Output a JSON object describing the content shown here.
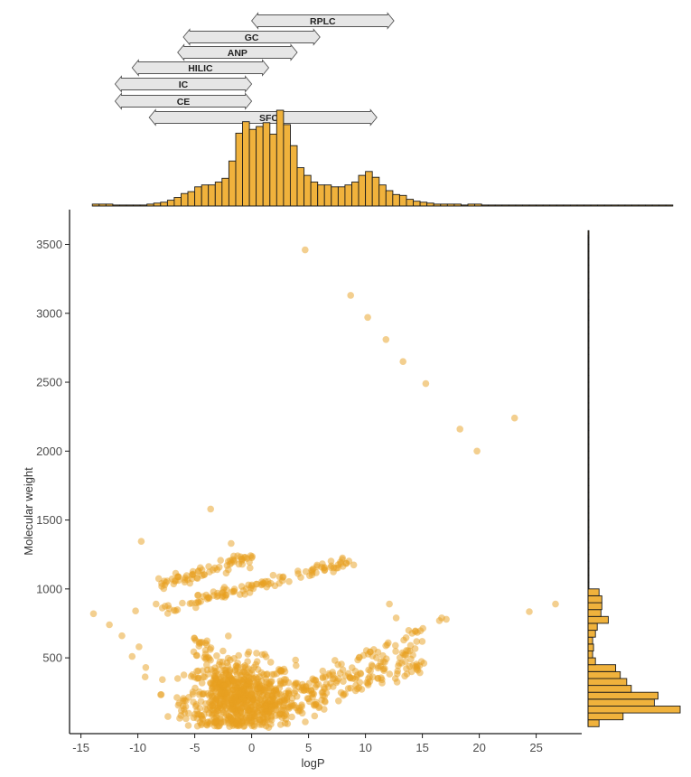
{
  "chart_data": {
    "type": "scatter",
    "xlabel": "logP",
    "ylabel": "Molecular weight",
    "xlim": [
      -16,
      29
    ],
    "ylim": [
      -50,
      3700
    ],
    "x_ticks": [
      -15,
      -10,
      -5,
      0,
      5,
      10,
      15,
      20,
      25
    ],
    "y_ticks": [
      500,
      1000,
      1500,
      2000,
      2500,
      3000,
      3500
    ],
    "grid": false,
    "colors": {
      "point": "#e8a020",
      "bar_fill": "#f0b23c",
      "bar_stroke": "#1a1a1a",
      "arrow_fill": "#e6e6e6",
      "arrow_stroke": "#555555",
      "axis": "#1a1a1a",
      "tick_label": "#4d4d4d"
    },
    "technique_ranges": [
      {
        "label": "RPLC",
        "start": 0,
        "end": 12.5
      },
      {
        "label": "GC",
        "start": -6,
        "end": 6
      },
      {
        "label": "ANP",
        "start": -6.5,
        "end": 4
      },
      {
        "label": "HILIC",
        "start": -10.5,
        "end": 1.5
      },
      {
        "label": "IC",
        "start": -12,
        "end": 0
      },
      {
        "label": "CE",
        "start": -12,
        "end": 0
      },
      {
        "label": "SFC",
        "start": -9,
        "end": 11
      }
    ],
    "logp_histogram": {
      "bin_start": -14,
      "bin_width": 0.6,
      "heights": [
        0.02,
        0.02,
        0.02,
        0.01,
        0.01,
        0.01,
        0.01,
        0.01,
        0.02,
        0.03,
        0.04,
        0.06,
        0.09,
        0.13,
        0.15,
        0.2,
        0.22,
        0.22,
        0.25,
        0.29,
        0.47,
        0.76,
        0.88,
        0.8,
        0.83,
        0.87,
        0.75,
        1.0,
        0.85,
        0.63,
        0.4,
        0.32,
        0.25,
        0.22,
        0.22,
        0.2,
        0.2,
        0.22,
        0.25,
        0.32,
        0.36,
        0.3,
        0.22,
        0.16,
        0.12,
        0.11,
        0.07,
        0.05,
        0.04,
        0.03,
        0.02,
        0.02,
        0.02,
        0.02,
        0.01,
        0.02,
        0.02,
        0.01,
        0.01,
        0.01,
        0.01,
        0.01,
        0.01,
        0.01,
        0.01,
        0.01,
        0.01,
        0.01,
        0.01,
        0.01,
        0.01,
        0.01,
        0.01,
        0.01,
        0.01,
        0.01,
        0.01,
        0.01,
        0.01,
        0.01,
        0.01,
        0.01,
        0.01,
        0.01,
        0.01
      ]
    },
    "mw_histogram": {
      "bin_start": 0,
      "bin_width": 50,
      "heights": [
        0.12,
        0.38,
        1.0,
        0.72,
        0.76,
        0.47,
        0.42,
        0.35,
        0.3,
        0.08,
        0.05,
        0.06,
        0.05,
        0.08,
        0.1,
        0.22,
        0.14,
        0.15,
        0.15,
        0.12,
        0.01,
        0.01,
        0.01,
        0.01,
        0.01,
        0.01,
        0.01,
        0.01,
        0.01,
        0.01,
        0.01,
        0.01,
        0.01,
        0.01,
        0.01,
        0.01,
        0.01,
        0.01,
        0.01,
        0.01,
        0.01,
        0.01,
        0.01,
        0.01,
        0.01,
        0.01,
        0.01,
        0.01,
        0.01,
        0.01,
        0.01,
        0.01,
        0.01,
        0.01,
        0.01,
        0.01,
        0.01,
        0.01,
        0.01,
        0.01,
        0.01,
        0.01,
        0.01,
        0.01,
        0.01,
        0.01,
        0.01,
        0.01,
        0.01,
        0.01,
        0.01,
        0.01
      ]
    },
    "outliers": [
      [
        4.7,
        3460
      ],
      [
        8.7,
        3130
      ],
      [
        10.2,
        2970
      ],
      [
        11.8,
        2810
      ],
      [
        13.3,
        2650
      ],
      [
        15.3,
        2490
      ],
      [
        23.1,
        2240
      ],
      [
        18.3,
        2160
      ],
      [
        19.8,
        2000
      ],
      [
        -3.6,
        1580
      ],
      [
        -9.7,
        1345
      ],
      [
        -1.8,
        1330
      ],
      [
        12.1,
        890
      ],
      [
        24.4,
        835
      ],
      [
        26.7,
        890
      ],
      [
        -13.9,
        820
      ],
      [
        -12.5,
        740
      ],
      [
        -10.2,
        840
      ],
      [
        -11.4,
        660
      ],
      [
        -9.9,
        580
      ],
      [
        12.7,
        790
      ],
      [
        16.5,
        770
      ],
      [
        16.7,
        790
      ],
      [
        17.1,
        780
      ],
      [
        -8.4,
        890
      ],
      [
        -10.5,
        510
      ],
      [
        -9.3,
        430
      ]
    ],
    "clusters": [
      {
        "x0": -8.6,
        "y0": 1010,
        "x1": 0.0,
        "y1": 1230,
        "n": 70,
        "spread_y": 22
      },
      {
        "x0": -7.8,
        "y0": 850,
        "x1": 8.6,
        "y1": 1200,
        "n": 110,
        "spread_y": 22
      },
      {
        "x0": 0.5,
        "y0": 120,
        "x1": 15.2,
        "y1": 720,
        "n": 80,
        "spread_y": 30
      },
      {
        "x0": 1.5,
        "y0": 100,
        "x1": 15.2,
        "y1": 600,
        "n": 80,
        "spread_y": 30
      },
      {
        "x0": 2.5,
        "y0": 80,
        "x1": 15.2,
        "y1": 450,
        "n": 70,
        "spread_y": 25
      },
      {
        "x0": -5.0,
        "y0": 650,
        "x1": -1.5,
        "y1": 150,
        "n": 60,
        "spread_y": 40
      }
    ],
    "blob": {
      "cx": -1.0,
      "cy": 200,
      "sx": 2.4,
      "sy": 140,
      "n": 700
    }
  }
}
